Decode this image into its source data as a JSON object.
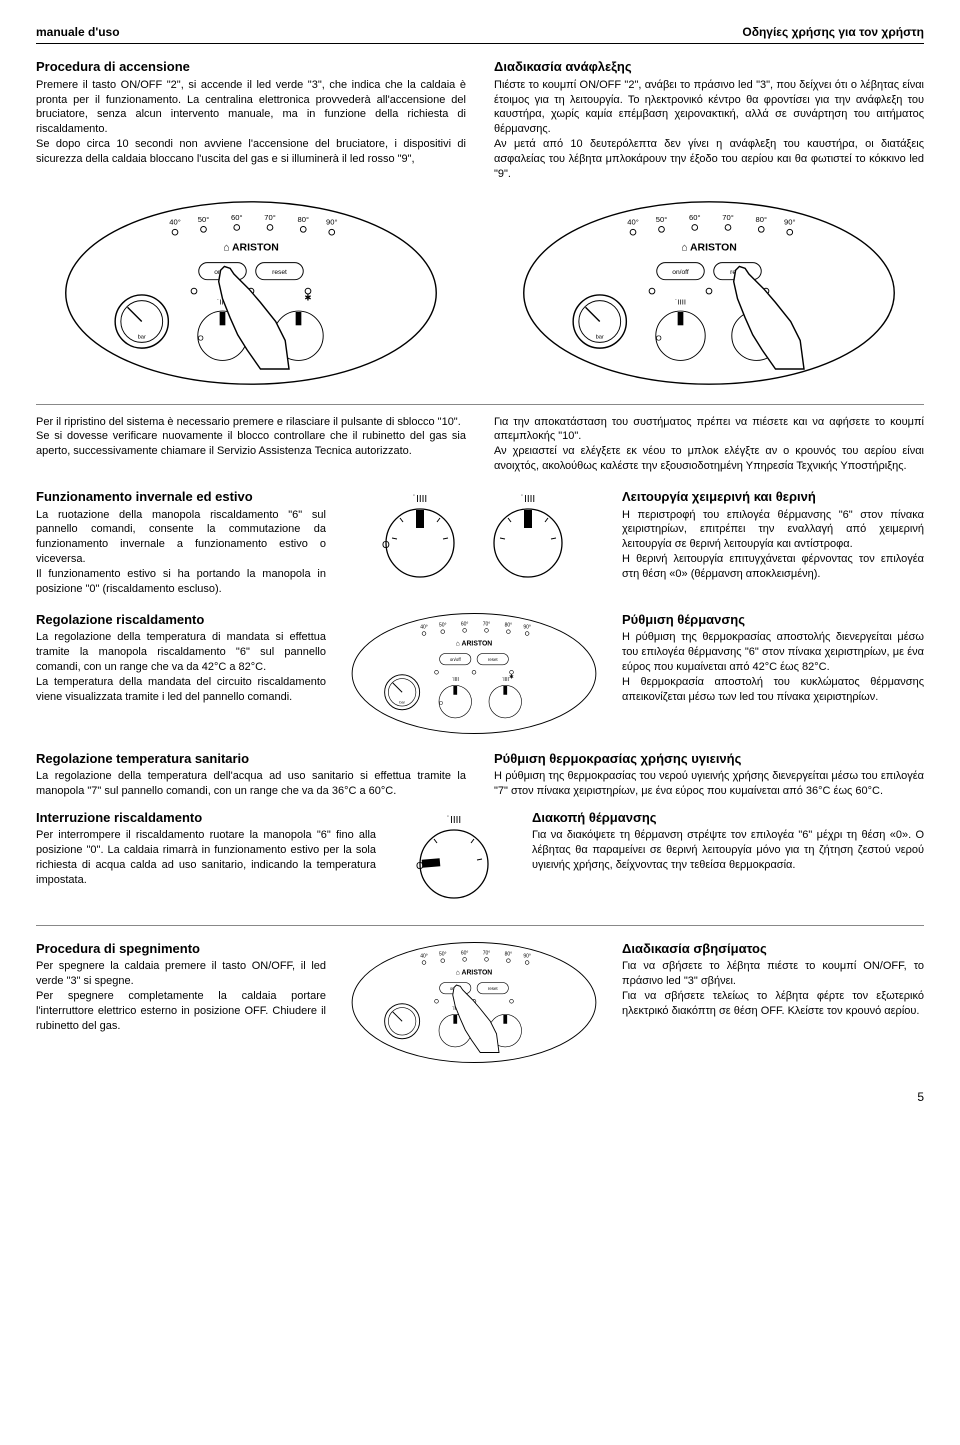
{
  "header": {
    "left": "manuale d'uso",
    "right": "Οδηγίες χρήσης για τον χρήστη"
  },
  "it": {
    "s1_title": "Procedura di accensione",
    "s1_body": "Premere il tasto ON/OFF \"2\", si accende il led verde \"3\", che indica che la caldaia è pronta per il funzionamento. La centralina elettronica provvederà all'accensione del bruciatore, senza alcun intervento manuale, ma in funzione della richiesta di riscaldamento.\nSe dopo circa 10 secondi non avviene l'accensione del bruciatore, i dispositivi di sicurezza della caldaia bloccano l'uscita del gas e si illuminerà il led rosso \"9\",",
    "s2_body": "Per il ripristino del sistema è necessario premere e rilasciare il pulsante di sblocco \"10\".\nSe si dovesse verificare nuovamente il blocco controllare che il rubinetto del gas sia aperto, successivamente chiamare il Servizio Assistenza Tecnica autorizzato.",
    "s3_title": "Funzionamento invernale ed estivo",
    "s3_body": "La ruotazione della manopola riscaldamento \"6\" sul pannello comandi, consente la commutazione da funzionamento invernale a funzionamento estivo o viceversa.\nIl funzionamento estivo si ha portando la manopola in posizione \"0\" (riscaldamento escluso).",
    "s4_title": "Regolazione riscaldamento",
    "s4_body": "La regolazione della temperatura di mandata si effettua tramite la manopola riscaldamento \"6\" sul pannello comandi, con un range che va da 42°C a 82°C.\nLa temperatura della mandata del circuito riscaldamento viene visualizzata tramite i led del pannello comandi.",
    "s5_title": "Regolazione temperatura sanitario",
    "s5_body": "La regolazione della temperatura dell'acqua ad uso sanitario si effettua tramite la manopola \"7\" sul pannello comandi, con un range che va da 36°C a 60°C.",
    "s6_title": "Interruzione riscaldamento",
    "s6_body": "Per interrompere il riscaldamento ruotare la manopola \"6\" fino alla posizione \"0\". La caldaia rimarrà in funzionamento estivo per la sola richiesta di acqua calda ad uso sanitario, indicando la temperatura impostata.",
    "s7_title": "Procedura di spegnimento",
    "s7_body": "Per spegnere la caldaia premere il tasto ON/OFF, il led verde \"3\" si spegne.\nPer spegnere completamente la caldaia portare l'interruttore elettrico esterno in posizione OFF. Chiudere il rubinetto del gas."
  },
  "gr": {
    "s1_title": "Διαδικασία ανάφλεξης",
    "s1_body": "Πιέστε το κουμπί ON/OFF \"2\", ανάβει το πράσινο led \"3\", που δείχνει ότι ο λέβητας είναι έτοιμος για τη λειτουργία. Το ηλεκτρονικό κέντρο θα φροντίσει για την ανάφλεξη του καυστήρα, χωρίς καμία επέμβαση χειρονακτική, αλλά σε συνάρτηση του αιτήματος θέρμανσης.\nΑν μετά από 10 δευτερόλεπτα δεν γίνει η ανάφλεξη του καυστήρα, οι διατάξεις ασφαλείας του λέβητα μπλοκάρουν την έξοδο του αερίου και θα φωτιστεί το κόκκινο led \"9\".",
    "s2_body": "Για την αποκατάσταση του συστήματος πρέπει να πιέσετε και να αφήσετε το κουμπί απεμπλοκής \"10\".\nΑν χρειαστεί να ελέγξετε εκ νέου το μπλοκ ελέγξτε αν ο κρουνός του αερίου είναι ανοιχτός, ακολούθως καλέστε την εξουσιοδοτημένη Υπηρεσία Τεχνικής Υποστήριξης.",
    "s3_title": "Λειτουργία χειμερινή και θερινή",
    "s3_body": "Η περιστροφή του επιλογέα θέρμανσης \"6\" στον πίνακα χειριστηρίων, επιτρέπει την εναλλαγή από χειμερινή λειτουργία σε θερινή λειτουργία και αντίστροφα.\nΗ θερινή λειτουργία επιτυγχάνεται φέρνοντας τον επιλογέα στη θέση «0» (θέρμανση αποκλεισμένη).",
    "s4_title": "Ρύθμιση θέρμανσης",
    "s4_body": "Η ρύθμιση της θερμοκρασίας αποστολής διενεργείται μέσω του επιλογέα θέρμανσης \"6\" στον πίνακα χειριστηρίων, με ένα εύρος που κυμαίνεται από 42°C έως 82°C.\nΗ θερμοκρασία αποστολή του κυκλώματος θέρμανσης απεικονίζεται μέσω των led του πίνακα χειριστηρίων.",
    "s5_title": "Ρύθμιση θερμοκρασίας χρήσης υγιεινής",
    "s5_body": "Η ρύθμιση της θερμοκρασίας του νερού υγιεινής χρήσης διενεργείται μέσω του επιλογέα \"7\" στον πίνακα χειριστηρίων, με ένα εύρος που κυμαίνεται από 36°C έως 60°C.",
    "s6_title": "Διακοπή θέρμανσης",
    "s6_body": "Για να διακόψετε τη θέρμανση στρέψτε τον επιλογέα \"6\" μέχρι τη θέση «0». Ο λέβητας θα παραμείνει σε θερινή λειτουργία μόνο για τη ζήτηση ζεστού νερού υγιεινής χρήσης, δείχνοντας την τεθείσα θερμοκρασία.",
    "s7_title": "Διαδικασία σβησίματος",
    "s7_body": "Για να σβήσετε το λέβητα πιέστε το κουμπί ON/OFF, το πράσινο led \"3\" σβήνει.\nΓια να σβήσετε τελείως το λέβητα φέρτε τον εξωτερικό ηλεκτρικό διακόπτη σε θέση OFF. Κλείστε τον κρουνό αερίου."
  },
  "panel": {
    "brand": "ARISTON",
    "temps": [
      "40°",
      "50°",
      "60°",
      "70°",
      "80°",
      "90°"
    ],
    "btn_onoff": "on/off",
    "btn_reset": "reset",
    "gauge_label": "bar"
  },
  "page_number": "5"
}
